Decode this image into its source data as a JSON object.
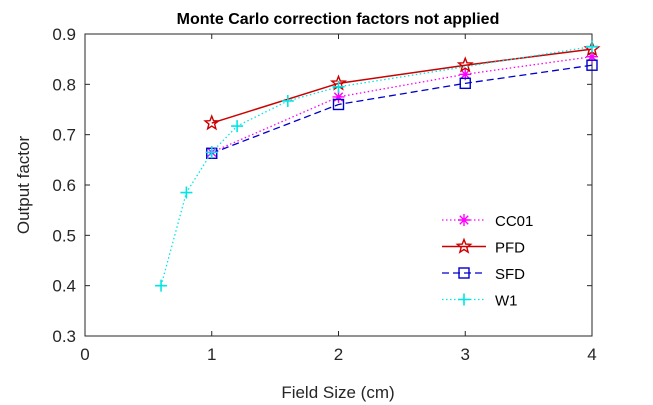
{
  "chart_data": {
    "type": "line",
    "title": "Monte Carlo correction factors not applied",
    "xlabel": "Field Size (cm)",
    "ylabel": "Output factor",
    "xlim": [
      0,
      4
    ],
    "ylim": [
      0.3,
      0.9
    ],
    "xticks": [
      0,
      1,
      2,
      3,
      4
    ],
    "xtick_labels": [
      "0",
      "1",
      "2",
      "3",
      "4"
    ],
    "yticks": [
      0.3,
      0.4,
      0.5,
      0.6,
      0.7,
      0.8,
      0.9
    ],
    "ytick_labels": [
      "0.3",
      "0.4",
      "0.5",
      "0.6",
      "0.7",
      "0.8",
      "0.9"
    ],
    "grid": false,
    "legend_position": "bottom-right",
    "series": [
      {
        "name": "CC01",
        "color": "#ff00ff",
        "line_style": "dotted",
        "marker": "asterisk",
        "x": [
          1,
          2,
          3,
          4
        ],
        "y": [
          0.665,
          0.775,
          0.82,
          0.855
        ]
      },
      {
        "name": "PFD",
        "color": "#cc0000",
        "line_style": "solid",
        "marker": "star",
        "x": [
          1,
          2,
          3,
          4
        ],
        "y": [
          0.723,
          0.802,
          0.838,
          0.87
        ]
      },
      {
        "name": "SFD",
        "color": "#0000cc",
        "line_style": "dashed",
        "marker": "square",
        "x": [
          1,
          2,
          3,
          4
        ],
        "y": [
          0.663,
          0.76,
          0.802,
          0.838
        ]
      },
      {
        "name": "W1",
        "color": "#00e5e5",
        "line_style": "dotted",
        "marker": "plus",
        "x": [
          0.6,
          0.8,
          1.0,
          1.2,
          1.6,
          2.0,
          4.0
        ],
        "y": [
          0.4,
          0.585,
          0.665,
          0.717,
          0.767,
          0.795,
          0.875
        ]
      }
    ]
  }
}
